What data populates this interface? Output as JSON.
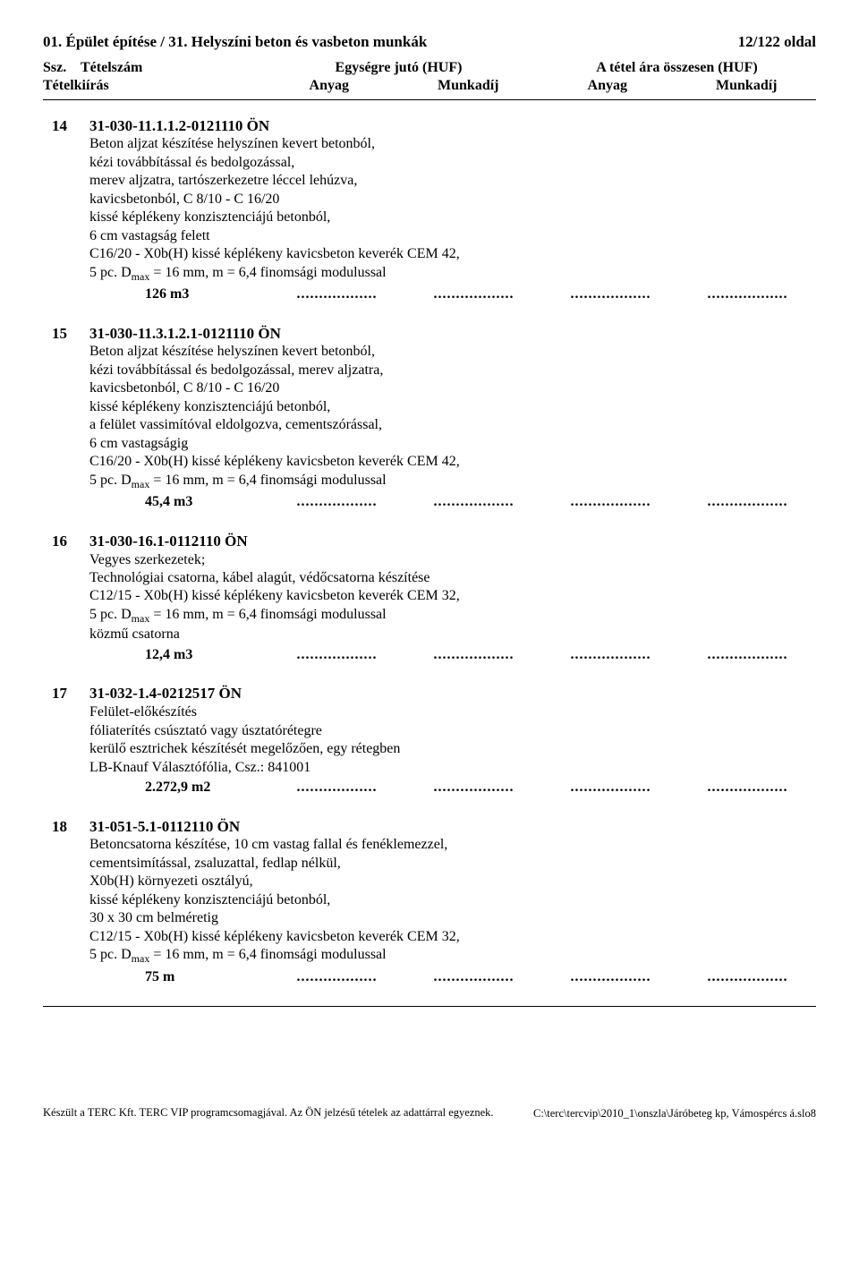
{
  "header": {
    "left": "01. Épület építése  /  31. Helyszíni beton és vasbeton munkák",
    "right": "12/122 oldal",
    "col_ssz": "Ssz.",
    "col_tetelszam": "Tételszám",
    "col_unit": "Egységre jutó (HUF)",
    "col_total": "A tétel ára összesen (HUF)",
    "col_desc": "Tételkiírás",
    "col_anyag": "Anyag",
    "col_munkadij": "Munkadíj"
  },
  "items": [
    {
      "num": "14",
      "code": "31-030-11.1.1.2-0121110 ÖN",
      "lines": [
        "Beton aljzat készítése helyszínen kevert betonból,",
        "kézi továbbítással és bedolgozással,",
        "merev aljzatra, tartószerkezetre léccel lehúzva,",
        "kavicsbetonból, C 8/10 - C 16/20",
        "kissé képlékeny konzisztenciájú betonból,",
        "6 cm vastagság felett",
        "C16/20 - X0b(H) kissé képlékeny kavicsbeton keverék CEM 42,",
        "5 pc. D<sub>max</sub> = 16 mm, m = 6,4 finomsági modulussal"
      ],
      "qty": "126",
      "unit": "m3"
    },
    {
      "num": "15",
      "code": "31-030-11.3.1.2.1-0121110 ÖN",
      "lines": [
        "Beton aljzat készítése helyszínen kevert betonból,",
        "kézi továbbítással és bedolgozással, merev aljzatra,",
        "kavicsbetonból, C 8/10 - C 16/20",
        "kissé képlékeny konzisztenciájú betonból,",
        "a felület vassimítóval eldolgozva, cementszórással,",
        "6 cm vastagságig",
        "C16/20 - X0b(H) kissé képlékeny kavicsbeton keverék CEM 42,",
        "5 pc. D<sub>max</sub> = 16 mm, m = 6,4 finomsági modulussal"
      ],
      "qty": "45,4",
      "unit": "m3"
    },
    {
      "num": "16",
      "code": "31-030-16.1-0112110 ÖN",
      "lines": [
        "Vegyes szerkezetek;",
        "Technológiai csatorna, kábel alagút, védőcsatorna készítése",
        "C12/15 - X0b(H) kissé képlékeny kavicsbeton keverék CEM 32,",
        "5 pc. D<sub>max</sub> = 16 mm, m = 6,4 finomsági modulussal",
        "közmű csatorna"
      ],
      "qty": "12,4",
      "unit": "m3"
    },
    {
      "num": "17",
      "code": "31-032-1.4-0212517 ÖN",
      "lines": [
        "Felület-előkészítés",
        "fóliaterítés csúsztató vagy úsztatórétegre",
        "kerülő esztrichek készítését megelőzően, egy rétegben",
        "LB-Knauf Választófólia, Csz.: 841001"
      ],
      "qty": "2.272,9",
      "unit": "m2"
    },
    {
      "num": "18",
      "code": "31-051-5.1-0112110 ÖN",
      "lines": [
        "Betoncsatorna készítése, 10 cm vastag fallal és fenéklemezzel,",
        "cementsimítással, zsaluzattal, fedlap nélkül,",
        "X0b(H) környezeti osztályú,",
        "kissé képlékeny konzisztenciájú betonból,",
        "30 x 30 cm belméretig",
        "C12/15 - X0b(H) kissé képlékeny kavicsbeton keverék CEM 32,",
        "5 pc. D<sub>max</sub> = 16 mm, m = 6,4 finomsági modulussal"
      ],
      "qty": "75",
      "unit": "m"
    }
  ],
  "dots": "..................",
  "footer": {
    "line1": "Készült a TERC Kft. TERC VIP programcsomagjával. Az ÖN jelzésű tételek az adattárral egyeznek.",
    "line2": "C:\\terc\\tercvip\\2010_1\\onszla\\Járóbeteg kp, Vámospércs á.slo8"
  }
}
